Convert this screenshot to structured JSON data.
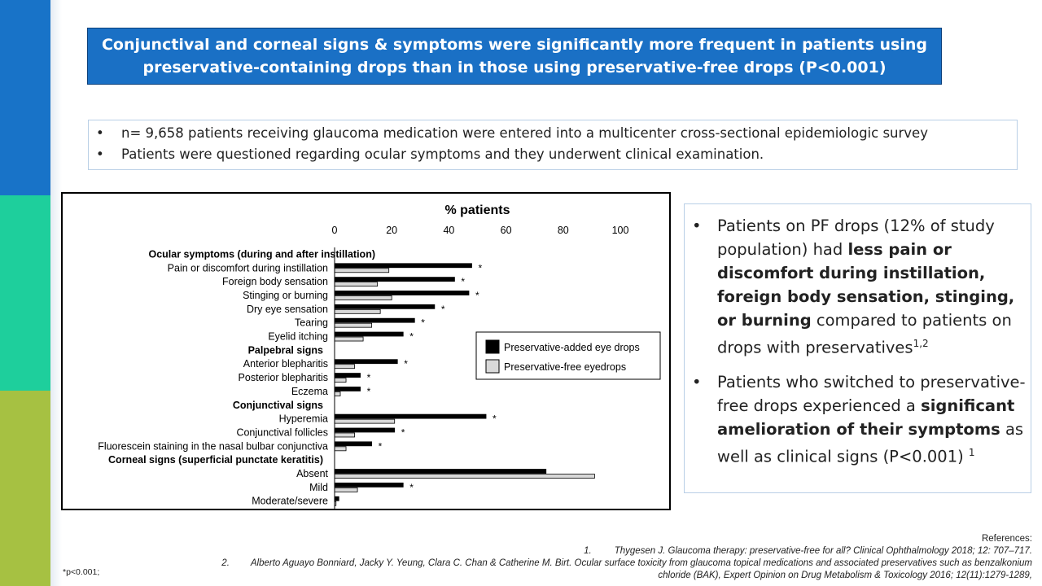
{
  "header": {
    "line1": "Conjunctival and corneal signs & symptoms were significantly more frequent in patients using",
    "line2": "preservative-containing drops than in those using preservative-free drops (P<0.001)"
  },
  "intro": {
    "bullets": [
      "n= 9,658 patients receiving glaucoma medication were entered into a multicenter cross-sectional epidemiologic survey",
      "Patients were questioned regarding ocular symptoms and they underwent clinical examination."
    ]
  },
  "right_panel": {
    "bullet1": {
      "pre": "Patients on PF drops (12% of study population) had ",
      "bold": "less pain or discomfort during instillation, foreign body sensation, stinging, or burning",
      "post": " compared to patients on drops with preservatives",
      "sup": "1,2"
    },
    "bullet2": {
      "pre": "Patients who switched to preservative-free drops experienced a ",
      "bold": "significant amelioration of their symptoms",
      "post": " as well as clinical signs (P<0.001) ",
      "sup": "1"
    }
  },
  "references": {
    "title": "References:",
    "ref1_num": "1.",
    "ref1": "Thygesen J. Glaucoma therapy: preservative-free for all? Clinical Ophthalmology 2018; 12: 707–717.",
    "ref2_num": "2.",
    "ref2a": "Alberto Aguayo Bonniard, Jacky Y. Yeung, Clara C. Chan & Catherine M. Birt. Ocular surface toxicity from glaucoma topical medications and associated preservatives such as benzalkonium",
    "ref2b": "chloride (BAK), Expert Opinion on Drug Metabolism & Toxicology 2016; 12(11):1279-1289,"
  },
  "footnote": "*p<0.001;",
  "colors": {
    "banner": "#1a70c5",
    "series_preservative": "#000000",
    "series_free": "#d9d9d9"
  },
  "chart_data": {
    "type": "bar",
    "orientation": "horizontal",
    "title": "% patients",
    "xlim": [
      0,
      100
    ],
    "xticks": [
      0,
      20,
      40,
      60,
      80,
      100
    ],
    "legend_position": "right",
    "rows": [
      {
        "kind": "group",
        "label": "Ocular symptoms (during and after instillation)"
      },
      {
        "kind": "item",
        "label": "Pain or discomfort during instillation",
        "pres": 48,
        "free": 19,
        "sig": "*"
      },
      {
        "kind": "item",
        "label": "Foreign body sensation",
        "pres": 42,
        "free": 15,
        "sig": "*"
      },
      {
        "kind": "item",
        "label": "Stinging or burning",
        "pres": 47,
        "free": 20,
        "sig": "*"
      },
      {
        "kind": "item",
        "label": "Dry eye sensation",
        "pres": 35,
        "free": 16,
        "sig": "*"
      },
      {
        "kind": "item",
        "label": "Tearing",
        "pres": 28,
        "free": 13,
        "sig": "*"
      },
      {
        "kind": "item",
        "label": "Eyelid itching",
        "pres": 24,
        "free": 10,
        "sig": "*"
      },
      {
        "kind": "group",
        "label": "Palpebral signs"
      },
      {
        "kind": "item",
        "label": "Anterior blepharitis",
        "pres": 22,
        "free": 7,
        "sig": "*"
      },
      {
        "kind": "item",
        "label": "Posterior blepharitis",
        "pres": 9,
        "free": 4,
        "sig": "*"
      },
      {
        "kind": "item",
        "label": "Eczema",
        "pres": 9,
        "free": 2,
        "sig": "*"
      },
      {
        "kind": "group",
        "label": "Conjunctival signs"
      },
      {
        "kind": "item",
        "label": "Hyperemia",
        "pres": 53,
        "free": 21,
        "sig": "*"
      },
      {
        "kind": "item",
        "label": "Conjunctival follicles",
        "pres": 21,
        "free": 7,
        "sig": "*"
      },
      {
        "kind": "item",
        "label": "Fluorescein staining in the nasal bulbar conjunctiva",
        "pres": 13,
        "free": 4,
        "sig": "*"
      },
      {
        "kind": "group",
        "label": "Corneal signs (superficial punctate keratitis)"
      },
      {
        "kind": "item",
        "label": "Absent",
        "pres": 74,
        "free": 91,
        "sig": ""
      },
      {
        "kind": "item",
        "label": "Mild",
        "pres": 24,
        "free": 8,
        "sig": "*"
      },
      {
        "kind": "item",
        "label": "Moderate/severe",
        "pres": 1.5,
        "free": 0.5,
        "sig": ""
      }
    ],
    "series": [
      {
        "name": "Preservative-added eye drops",
        "key": "pres"
      },
      {
        "name": "Preservative-free eyedrops",
        "key": "free"
      }
    ]
  }
}
